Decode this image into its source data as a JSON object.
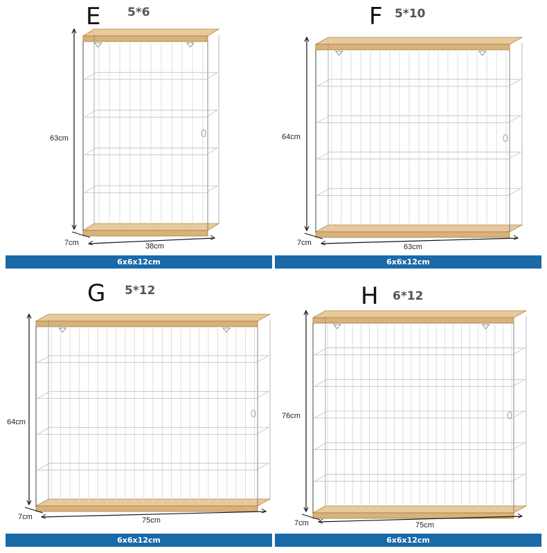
{
  "panels": [
    {
      "letter": "E",
      "grid": "5*6",
      "height": "63cm",
      "depth": "7cm",
      "width": "38cm",
      "spec": "6x6x12cm",
      "rows": 5,
      "cols": 6
    },
    {
      "letter": "F",
      "grid": "5*10",
      "height": "64cm",
      "depth": "7cm",
      "width": "63cm",
      "spec": "6x6x12cm",
      "rows": 5,
      "cols": 10
    },
    {
      "letter": "G",
      "grid": "5*12",
      "height": "64cm",
      "depth": "7cm",
      "width": "75cm",
      "spec": "6x6x12cm",
      "rows": 5,
      "cols": 12
    },
    {
      "letter": "H",
      "grid": "6*12",
      "height": "76cm",
      "depth": "7cm",
      "width": "75cm",
      "spec": "6x6x12cm",
      "rows": 6,
      "cols": 12
    }
  ],
  "colors": {
    "wood": "#d8b27a",
    "bar": "#1a6aa8"
  }
}
